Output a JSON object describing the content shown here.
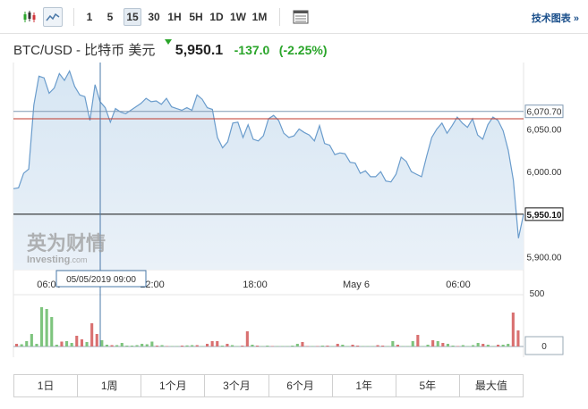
{
  "toolbar": {
    "timeframes": [
      "1",
      "5",
      "15",
      "30",
      "1H",
      "5H",
      "1D",
      "1W",
      "1M"
    ],
    "active_timeframe": "15",
    "tech_link": "技术图表 »"
  },
  "header": {
    "instrument": "BTC/USD - 比特币 美元",
    "price": "5,950.1",
    "change": "-137.0",
    "change_pct": "(-2.25%)",
    "change_color": "#2aa52a"
  },
  "watermark": {
    "cn": "英为财情",
    "en": "Investing",
    "en_suffix": ".com"
  },
  "chart_data": {
    "type": "area",
    "x_tick_labels": [
      "06:00",
      "12:00",
      "18:00",
      "May 6",
      "06:00"
    ],
    "y_tick_labels": [
      "6,050.00",
      "6,000.00",
      "5,900.00"
    ],
    "ylim": [
      5885,
      6128
    ],
    "crosshair_time": "05/05/2019 09:00",
    "last_price_label": "5,950.10",
    "hline_label": "6,070.70",
    "hline_value": 6070.7,
    "red_line_value": 6062,
    "series": [
      {
        "values": [
          5980,
          5981,
          5998,
          6003,
          6078,
          6112,
          6110,
          6092,
          6098,
          6115,
          6107,
          6118,
          6100,
          6090,
          6088,
          6060,
          6102,
          6082,
          6075,
          6058,
          6074,
          6070,
          6068,
          6072,
          6076,
          6080,
          6086,
          6082,
          6083,
          6079,
          6086,
          6076,
          6074,
          6072,
          6075,
          6072,
          6090,
          6085,
          6075,
          6073,
          6040,
          6028,
          6035,
          6057,
          6058,
          6040,
          6055,
          6038,
          6036,
          6042,
          6062,
          6066,
          6060,
          6045,
          6040,
          6042,
          6050,
          6046,
          6043,
          6036,
          6054,
          6033,
          6031,
          6020,
          6022,
          6021,
          6011,
          6010,
          5998,
          6001,
          5994,
          5994,
          6000,
          5989,
          5988,
          5997,
          6017,
          6012,
          6000,
          5997,
          5994,
          6018,
          6040,
          6050,
          6057,
          6045,
          6054,
          6064,
          6057,
          6052,
          6062,
          6043,
          6038,
          6055,
          6064,
          6060,
          6048,
          6025,
          5990,
          5922,
          5950
        ]
      }
    ],
    "volume": {
      "type": "bar",
      "axis_labels": [
        "500",
        "0"
      ],
      "ylim": [
        0,
        560
      ],
      "values": [
        30,
        25,
        60,
        140,
        30,
        440,
        420,
        330,
        20,
        55,
        60,
        40,
        120,
        80,
        50,
        260,
        140,
        70,
        20,
        15,
        15,
        40,
        10,
        10,
        15,
        30,
        25,
        55,
        10,
        15,
        5,
        5,
        5,
        10,
        12,
        15,
        15,
        5,
        30,
        60,
        60,
        10,
        30,
        15,
        5,
        10,
        170,
        20,
        10,
        5,
        10,
        5,
        5,
        5,
        5,
        10,
        30,
        50,
        5,
        5,
        5,
        10,
        10,
        5,
        30,
        20,
        5,
        20,
        10,
        5,
        5,
        5,
        15,
        10,
        5,
        60,
        20,
        5,
        5,
        60,
        130,
        5,
        20,
        70,
        60,
        40,
        30,
        10,
        5,
        15,
        5,
        15,
        40,
        30,
        20,
        5,
        20,
        20,
        30,
        380,
        180
      ],
      "colors": [
        "r",
        "g",
        "g",
        "g",
        "g",
        "g",
        "g",
        "g",
        "g",
        "r",
        "g",
        "g",
        "r",
        "r",
        "g",
        "r",
        "r",
        "g",
        "g",
        "r",
        "g",
        "g",
        "g",
        "g",
        "g",
        "g",
        "g",
        "g",
        "r",
        "g",
        "r",
        "g",
        "g",
        "r",
        "g",
        "g",
        "r",
        "g",
        "r",
        "r",
        "r",
        "g",
        "r",
        "g",
        "g",
        "r",
        "r",
        "g",
        "r",
        "g",
        "g",
        "r",
        "g",
        "g",
        "g",
        "g",
        "g",
        "r",
        "r",
        "g",
        "r",
        "g",
        "r",
        "g",
        "r",
        "g",
        "g",
        "r",
        "r",
        "g",
        "g",
        "g",
        "r",
        "r",
        "g",
        "g",
        "r",
        "g",
        "g",
        "g",
        "r",
        "g",
        "g",
        "r",
        "g",
        "r",
        "g",
        "g",
        "r",
        "g",
        "g",
        "g",
        "g",
        "r",
        "g",
        "g",
        "r",
        "g",
        "g",
        "r",
        "r"
      ]
    }
  },
  "ranges": [
    "1日",
    "1周",
    "1个月",
    "3个月",
    "6个月",
    "1年",
    "5年",
    "最大值"
  ]
}
